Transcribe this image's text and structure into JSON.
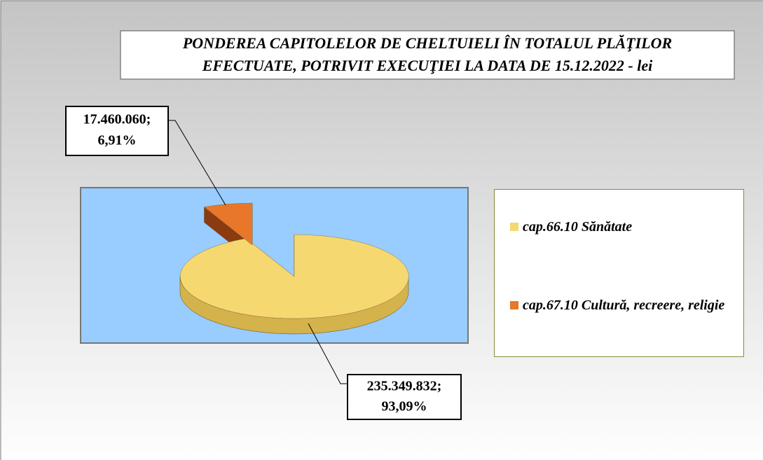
{
  "chart_data": {
    "type": "pie",
    "title": [
      "PONDEREA  CAPITOLELOR DE CHELTUIELI ÎN TOTALUL PLĂŢILOR",
      "EFECTUATE, POTRIVIT EXECUŢIEI  LA DATA DE 15.12.2022 - lei"
    ],
    "categories": [
      "cap.66.10 Sănătate",
      "cap.67.10 Cultură, recreere, religie"
    ],
    "values": [
      235349832,
      17460060
    ],
    "value_labels": [
      [
        "235.349.832;",
        "93,09%"
      ],
      [
        "17.460.060;",
        "6,91%"
      ]
    ],
    "colors": [
      "#f6d870",
      "#e8772a"
    ],
    "side_colors": [
      "#d4b24c",
      "#8c3a10"
    ]
  }
}
